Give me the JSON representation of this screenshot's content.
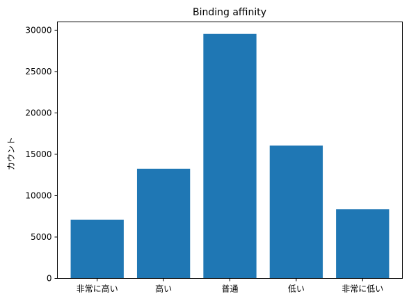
{
  "chart_data": {
    "type": "bar",
    "title": "Binding affinity",
    "xlabel": "",
    "ylabel": "カウント",
    "categories": [
      "非常に高い",
      "高い",
      "普通",
      "低い",
      "非常に低い"
    ],
    "values": [
      7100,
      13250,
      29550,
      16050,
      8350
    ],
    "ylim": [
      0,
      31000
    ],
    "yticks": [
      0,
      5000,
      10000,
      15000,
      20000,
      25000,
      30000
    ],
    "bar_color": "#1f77b4",
    "grid": false
  }
}
